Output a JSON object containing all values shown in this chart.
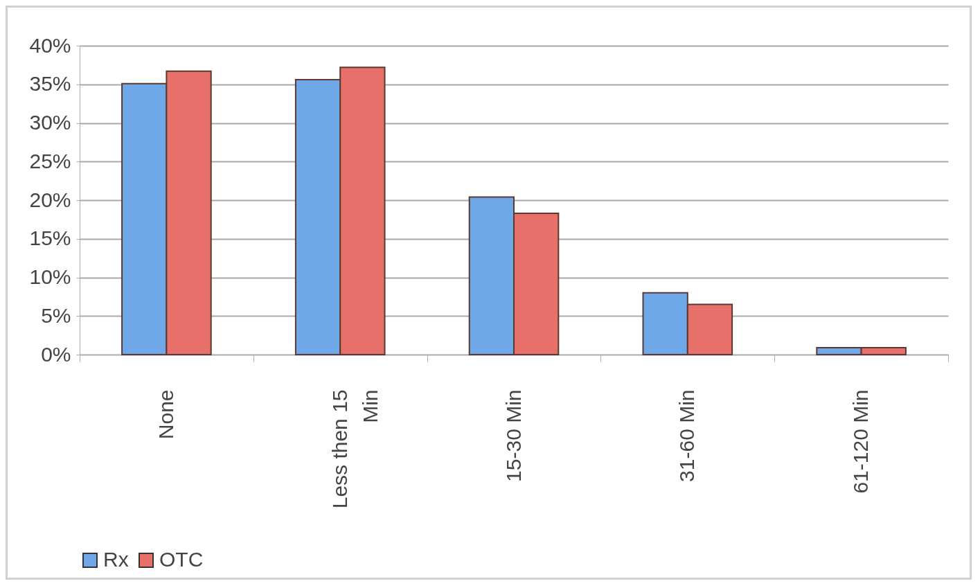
{
  "chart_data": {
    "type": "bar",
    "categories": [
      "None",
      "Less then 15 Min",
      "15-30 Min",
      "31-60 Min",
      "61-120 Min"
    ],
    "series": [
      {
        "name": "Rx",
        "color": "#6fa8e8",
        "values": [
          35.1,
          35.6,
          20.4,
          8.0,
          0.9
        ]
      },
      {
        "name": "OTC",
        "color": "#e8706a",
        "values": [
          36.7,
          37.2,
          18.3,
          6.5,
          0.9
        ]
      }
    ],
    "ylim": [
      0,
      40
    ],
    "yticks": [
      {
        "value": 0,
        "label": "0%"
      },
      {
        "value": 5,
        "label": "5%"
      },
      {
        "value": 10,
        "label": "10%"
      },
      {
        "value": 15,
        "label": "15%"
      },
      {
        "value": 20,
        "label": "20%"
      },
      {
        "value": 25,
        "label": "25%"
      },
      {
        "value": 30,
        "label": "30%"
      },
      {
        "value": 35,
        "label": "35%"
      },
      {
        "value": 40,
        "label": "40%"
      }
    ],
    "grid": "y",
    "legend": "bottom"
  }
}
